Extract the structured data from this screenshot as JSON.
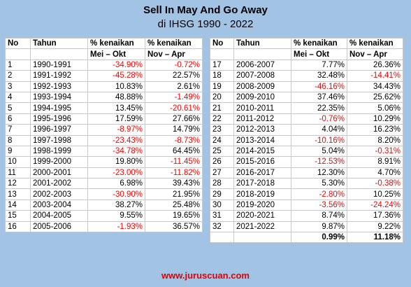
{
  "title": "Sell In May And Go Away",
  "subtitle": "di IHSG 1990 - 2022",
  "headers": {
    "no": "No",
    "tahun": "Tahun",
    "kenaikan1": "% kenaikan",
    "kenaikan2": "% kenaikan",
    "period1": "Mei – Okt",
    "period2": "Nov – Apr"
  },
  "left_rows": [
    {
      "no": "1",
      "tahun": "1990-1991",
      "mei": "-34.90%",
      "nov": "-0.72%"
    },
    {
      "no": "2",
      "tahun": "1991-1992",
      "mei": "-45.28%",
      "nov": "22.57%"
    },
    {
      "no": "3",
      "tahun": "1992-1993",
      "mei": "10.83%",
      "nov": "2.61%"
    },
    {
      "no": "4",
      "tahun": "1993-1994",
      "mei": "48.88%",
      "nov": "-1.49%"
    },
    {
      "no": "5",
      "tahun": "1994-1995",
      "mei": "13.45%",
      "nov": "-20.61%"
    },
    {
      "no": "6",
      "tahun": "1995-1996",
      "mei": "17.59%",
      "nov": "27.66%"
    },
    {
      "no": "7",
      "tahun": "1996-1997",
      "mei": "-8.97%",
      "nov": "14.79%"
    },
    {
      "no": "8",
      "tahun": "1997-1998",
      "mei": "-23.43%",
      "nov": "-8.73%"
    },
    {
      "no": "9",
      "tahun": "1998-1999",
      "mei": "-34.78%",
      "nov": "64.45%"
    },
    {
      "no": "10",
      "tahun": "1999-2000",
      "mei": "19.80%",
      "nov": "-11.45%"
    },
    {
      "no": "11",
      "tahun": "2000-2001",
      "mei": "-23.00%",
      "nov": "-11.82%"
    },
    {
      "no": "12",
      "tahun": "2001-2002",
      "mei": "6.98%",
      "nov": "39.43%"
    },
    {
      "no": "13",
      "tahun": "2002-2003",
      "mei": "-30.90%",
      "nov": "21.95%"
    },
    {
      "no": "14",
      "tahun": "2003-2004",
      "mei": "38.27%",
      "nov": "25.48%"
    },
    {
      "no": "15",
      "tahun": "2004-2005",
      "mei": "9.55%",
      "nov": "19.65%"
    },
    {
      "no": "16",
      "tahun": "2005-2006",
      "mei": "-1.93%",
      "nov": "36.57%"
    }
  ],
  "right_rows": [
    {
      "no": "17",
      "tahun": "2006-2007",
      "mei": "7.77%",
      "nov": "26.36%"
    },
    {
      "no": "18",
      "tahun": "2007-2008",
      "mei": "32.48%",
      "nov": "-14.41%"
    },
    {
      "no": "19",
      "tahun": "2008-2009",
      "mei": "-46.16%",
      "nov": "34.43%"
    },
    {
      "no": "20",
      "tahun": "2009-2010",
      "mei": "37.46%",
      "nov": "25.62%"
    },
    {
      "no": "21",
      "tahun": "2010-2011",
      "mei": "22.35%",
      "nov": "5.06%"
    },
    {
      "no": "22",
      "tahun": "2011-2012",
      "mei": "-0.76%",
      "nov": "10.29%"
    },
    {
      "no": "23",
      "tahun": "2012-2013",
      "mei": "4.04%",
      "nov": "16.23%"
    },
    {
      "no": "24",
      "tahun": "2013-2014",
      "mei": "-10.16%",
      "nov": "8.20%"
    },
    {
      "no": "25",
      "tahun": "2014-2015",
      "mei": "5.04%",
      "nov": "-0.31%"
    },
    {
      "no": "26",
      "tahun": "2015-2016",
      "mei": "-12.53%",
      "nov": "8.91%"
    },
    {
      "no": "27",
      "tahun": "2016-2017",
      "mei": "12.30%",
      "nov": "4.70%"
    },
    {
      "no": "28",
      "tahun": "2017-2018",
      "mei": "5.30%",
      "nov": "-0.38%"
    },
    {
      "no": "29",
      "tahun": "2018-2019",
      "mei": "-2.80%",
      "nov": "10.25%"
    },
    {
      "no": "30",
      "tahun": "2019-2020",
      "mei": "-3.56%",
      "nov": "-24.24%"
    },
    {
      "no": "31",
      "tahun": "2020-2021",
      "mei": "8.74%",
      "nov": "17.36%"
    },
    {
      "no": "32",
      "tahun": "2021-2022",
      "mei": "9.87%",
      "nov": "9.22%"
    }
  ],
  "totals": {
    "mei": "0.99%",
    "nov": "11.18%"
  },
  "footer": "www.juruscuan.com",
  "colors": {
    "background": "#a3c3e4",
    "negative": "#ff0000",
    "footer": "#e30000"
  }
}
